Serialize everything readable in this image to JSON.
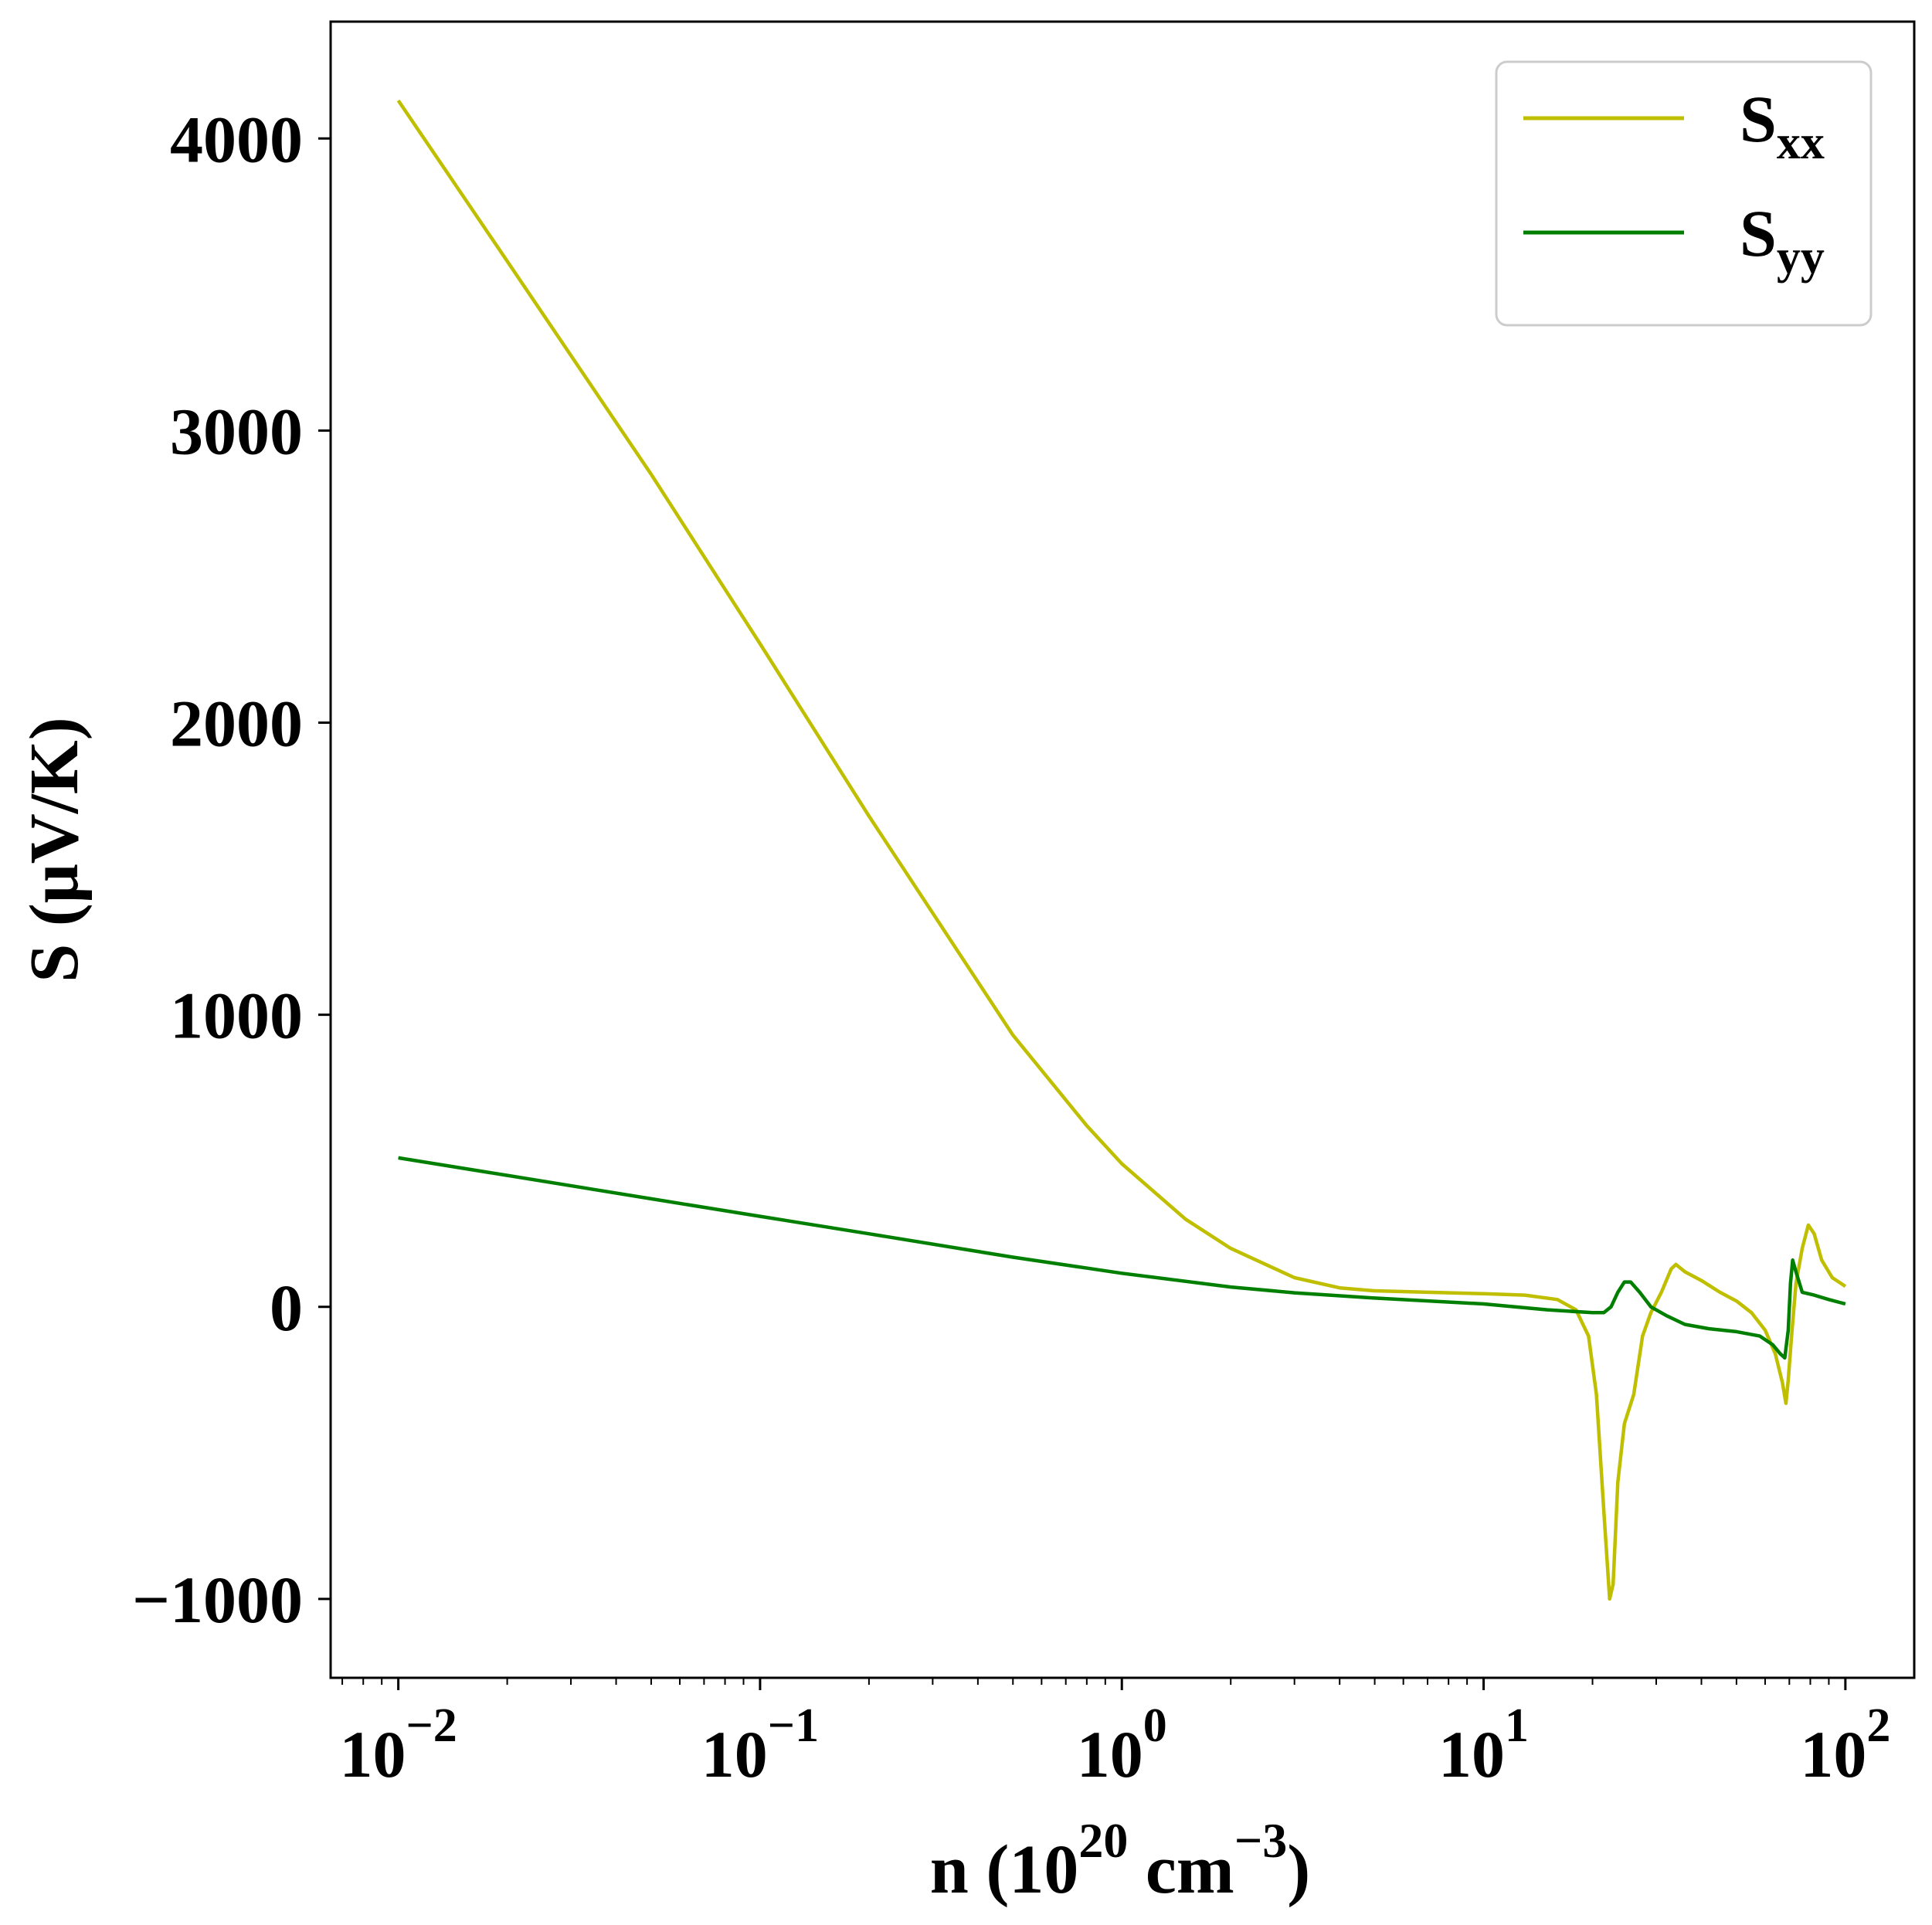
{
  "chart_data": {
    "type": "line",
    "xscale": "log",
    "xlim": [
      0.0065,
      155
    ],
    "ylim": [
      -1270,
      4400
    ],
    "grid": false,
    "legend_position": "top-right",
    "xlabel": {
      "base": "n (10",
      "sup1": "20",
      "mid": " cm",
      "sup2": "−3",
      "end": ")"
    },
    "ylabel": "S (μV/K)",
    "x_ticks": [
      {
        "value": 0.01,
        "base": "10",
        "exp": "−2"
      },
      {
        "value": 0.1,
        "base": "10",
        "exp": "−1"
      },
      {
        "value": 1,
        "base": "10",
        "exp": "0"
      },
      {
        "value": 10,
        "base": "10",
        "exp": "1"
      },
      {
        "value": 100,
        "base": "10",
        "exp": "2"
      }
    ],
    "y_ticks": [
      {
        "value": -1000,
        "label": "−1000"
      },
      {
        "value": 0,
        "label": "0"
      },
      {
        "value": 1000,
        "label": "1000"
      },
      {
        "value": 2000,
        "label": "2000"
      },
      {
        "value": 3000,
        "label": "3000"
      },
      {
        "value": 4000,
        "label": "4000"
      }
    ],
    "series": [
      {
        "name": "S",
        "sub": "xx",
        "color": "#bfbf00",
        "points": [
          [
            0.01,
            4130
          ],
          [
            0.02,
            3580
          ],
          [
            0.05,
            2850
          ],
          [
            0.1,
            2270
          ],
          [
            0.2,
            1680
          ],
          [
            0.5,
            930
          ],
          [
            0.8,
            620
          ],
          [
            1,
            490
          ],
          [
            1.5,
            300
          ],
          [
            2,
            200
          ],
          [
            3,
            100
          ],
          [
            4,
            65
          ],
          [
            5,
            55
          ],
          [
            7,
            50
          ],
          [
            10,
            45
          ],
          [
            13,
            40
          ],
          [
            16,
            25
          ],
          [
            18,
            -10
          ],
          [
            19.5,
            -100
          ],
          [
            20.5,
            -300
          ],
          [
            21.5,
            -700
          ],
          [
            22.3,
            -1000
          ],
          [
            22.8,
            -950
          ],
          [
            23.5,
            -600
          ],
          [
            24.5,
            -400
          ],
          [
            26,
            -300
          ],
          [
            27.5,
            -100
          ],
          [
            29,
            -20
          ],
          [
            31,
            50
          ],
          [
            33,
            130
          ],
          [
            34,
            145
          ],
          [
            36,
            120
          ],
          [
            40,
            90
          ],
          [
            45,
            50
          ],
          [
            50,
            20
          ],
          [
            55,
            -20
          ],
          [
            60,
            -80
          ],
          [
            64,
            -160
          ],
          [
            67,
            -260
          ],
          [
            68.5,
            -330
          ],
          [
            69.5,
            -250
          ],
          [
            71,
            -100
          ],
          [
            73,
            80
          ],
          [
            76,
            200
          ],
          [
            79,
            280
          ],
          [
            82,
            250
          ],
          [
            86,
            160
          ],
          [
            92,
            100
          ],
          [
            100,
            70
          ]
        ]
      },
      {
        "name": "S",
        "sub": "yy",
        "color": "#007f00",
        "points": [
          [
            0.01,
            510
          ],
          [
            0.02,
            450
          ],
          [
            0.05,
            370
          ],
          [
            0.1,
            310
          ],
          [
            0.2,
            250
          ],
          [
            0.5,
            170
          ],
          [
            1,
            115
          ],
          [
            2,
            68
          ],
          [
            3,
            48
          ],
          [
            5,
            30
          ],
          [
            10,
            10
          ],
          [
            15,
            -10
          ],
          [
            20,
            -20
          ],
          [
            21.5,
            -20
          ],
          [
            22.5,
            0
          ],
          [
            23.5,
            50
          ],
          [
            24.5,
            85
          ],
          [
            25.5,
            85
          ],
          [
            27,
            50
          ],
          [
            29,
            0
          ],
          [
            32,
            -30
          ],
          [
            36,
            -60
          ],
          [
            42,
            -75
          ],
          [
            50,
            -85
          ],
          [
            58,
            -100
          ],
          [
            63,
            -130
          ],
          [
            66,
            -160
          ],
          [
            68,
            -175
          ],
          [
            69.5,
            -80
          ],
          [
            70.5,
            80
          ],
          [
            71.5,
            160
          ],
          [
            73,
            120
          ],
          [
            76,
            50
          ],
          [
            82,
            40
          ],
          [
            90,
            25
          ],
          [
            100,
            10
          ]
        ]
      }
    ]
  }
}
